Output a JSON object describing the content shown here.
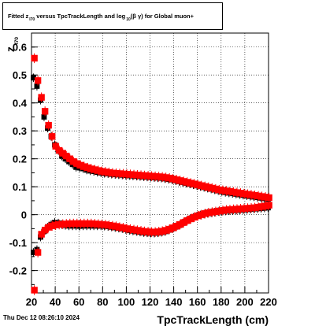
{
  "title_parts": {
    "p1": "Fitted  z",
    "sub1": "I70",
    "p2": "  versus TpcTrackLength and log",
    "sub2": "10",
    "p3": "(β γ) for Global muon+"
  },
  "timestamp": "Thu Dec 12 08:26:10 2024",
  "chart_data": {
    "type": "scatter",
    "xlabel": "TpcTrackLength (cm)",
    "ylabel": "z",
    "ylabel_sub": "I70",
    "xlim": [
      20,
      220
    ],
    "ylim": [
      -0.28,
      0.65
    ],
    "xticks": [
      20,
      40,
      60,
      80,
      100,
      120,
      140,
      160,
      180,
      200,
      220
    ],
    "yticks": [
      -0.2,
      -0.1,
      0,
      0.1,
      0.2,
      0.3,
      0.4,
      0.5,
      0.6
    ],
    "grid": true,
    "colors": {
      "black": "#000000",
      "red": "#ff0000"
    },
    "series": [
      {
        "color": "black",
        "points": [
          [
            22,
            0.49
          ],
          [
            25,
            0.46
          ],
          [
            28,
            0.41
          ],
          [
            31,
            0.35
          ],
          [
            34,
            0.31
          ],
          [
            37,
            0.28
          ],
          [
            40,
            0.25
          ],
          [
            43,
            0.23
          ],
          [
            46,
            0.21
          ],
          [
            49,
            0.2
          ],
          [
            52,
            0.19
          ],
          [
            55,
            0.18
          ],
          [
            58,
            0.17
          ],
          [
            61,
            0.168
          ],
          [
            64,
            0.165
          ],
          [
            67,
            0.16
          ],
          [
            70,
            0.157
          ],
          [
            73,
            0.155
          ],
          [
            76,
            0.152
          ],
          [
            79,
            0.15
          ],
          [
            82,
            0.148
          ],
          [
            85,
            0.147
          ],
          [
            88,
            0.145
          ],
          [
            91,
            0.144
          ],
          [
            94,
            0.143
          ],
          [
            97,
            0.142
          ],
          [
            100,
            0.141
          ],
          [
            103,
            0.14
          ],
          [
            106,
            0.139
          ],
          [
            109,
            0.138
          ],
          [
            112,
            0.137
          ],
          [
            115,
            0.136
          ],
          [
            118,
            0.135
          ],
          [
            121,
            0.134
          ],
          [
            124,
            0.133
          ],
          [
            127,
            0.132
          ],
          [
            130,
            0.131
          ],
          [
            133,
            0.129
          ],
          [
            136,
            0.127
          ],
          [
            139,
            0.125
          ],
          [
            142,
            0.122
          ],
          [
            145,
            0.119
          ],
          [
            148,
            0.116
          ],
          [
            151,
            0.113
          ],
          [
            154,
            0.11
          ],
          [
            157,
            0.107
          ],
          [
            160,
            0.104
          ],
          [
            163,
            0.101
          ],
          [
            166,
            0.098
          ],
          [
            169,
            0.095
          ],
          [
            172,
            0.092
          ],
          [
            175,
            0.089
          ],
          [
            178,
            0.086
          ],
          [
            181,
            0.083
          ],
          [
            184,
            0.08
          ],
          [
            187,
            0.078
          ],
          [
            190,
            0.076
          ],
          [
            193,
            0.074
          ],
          [
            196,
            0.072
          ],
          [
            199,
            0.07
          ],
          [
            202,
            0.068
          ],
          [
            205,
            0.066
          ],
          [
            208,
            0.064
          ],
          [
            211,
            0.062
          ],
          [
            214,
            0.06
          ],
          [
            217,
            0.058
          ],
          [
            220,
            0.056
          ],
          [
            22,
            -0.135
          ],
          [
            25,
            -0.125
          ],
          [
            28,
            -0.08
          ],
          [
            31,
            -0.06
          ],
          [
            34,
            -0.045
          ],
          [
            37,
            -0.035
          ],
          [
            40,
            -0.028
          ],
          [
            43,
            -0.03
          ],
          [
            46,
            -0.035
          ],
          [
            49,
            -0.038
          ],
          [
            52,
            -0.04
          ],
          [
            55,
            -0.04
          ],
          [
            58,
            -0.04
          ],
          [
            61,
            -0.041
          ],
          [
            64,
            -0.04
          ],
          [
            67,
            -0.04
          ],
          [
            70,
            -0.04
          ],
          [
            73,
            -0.04
          ],
          [
            76,
            -0.04
          ],
          [
            79,
            -0.04
          ],
          [
            82,
            -0.041
          ],
          [
            85,
            -0.042
          ],
          [
            88,
            -0.044
          ],
          [
            91,
            -0.046
          ],
          [
            94,
            -0.048
          ],
          [
            97,
            -0.05
          ],
          [
            100,
            -0.053
          ],
          [
            103,
            -0.056
          ],
          [
            106,
            -0.058
          ],
          [
            109,
            -0.06
          ],
          [
            112,
            -0.062
          ],
          [
            115,
            -0.064
          ],
          [
            118,
            -0.065
          ],
          [
            121,
            -0.066
          ],
          [
            124,
            -0.066
          ],
          [
            127,
            -0.065
          ],
          [
            130,
            -0.063
          ],
          [
            133,
            -0.06
          ],
          [
            136,
            -0.055
          ],
          [
            139,
            -0.05
          ],
          [
            142,
            -0.044
          ],
          [
            145,
            -0.038
          ],
          [
            148,
            -0.03
          ],
          [
            151,
            -0.023
          ],
          [
            154,
            -0.016
          ],
          [
            157,
            -0.01
          ],
          [
            160,
            -0.005
          ],
          [
            163,
            -0.001
          ],
          [
            166,
            0.002
          ],
          [
            169,
            0.005
          ],
          [
            172,
            0.007
          ],
          [
            175,
            0.009
          ],
          [
            178,
            0.011
          ],
          [
            181,
            0.012
          ],
          [
            184,
            0.013
          ],
          [
            187,
            0.014
          ],
          [
            190,
            0.015
          ],
          [
            193,
            0.016
          ],
          [
            196,
            0.017
          ],
          [
            199,
            0.018
          ],
          [
            202,
            0.019
          ],
          [
            205,
            0.02
          ],
          [
            208,
            0.021
          ],
          [
            211,
            0.022
          ],
          [
            214,
            0.023
          ],
          [
            217,
            0.024
          ],
          [
            220,
            0.025
          ]
        ]
      },
      {
        "color": "red",
        "points": [
          [
            22,
            0.56
          ],
          [
            25,
            0.48
          ],
          [
            28,
            0.42
          ],
          [
            31,
            0.37
          ],
          [
            34,
            0.32
          ],
          [
            37,
            0.28
          ],
          [
            40,
            0.245
          ],
          [
            43,
            0.23
          ],
          [
            46,
            0.22
          ],
          [
            49,
            0.21
          ],
          [
            52,
            0.2
          ],
          [
            55,
            0.19
          ],
          [
            58,
            0.183
          ],
          [
            61,
            0.177
          ],
          [
            64,
            0.172
          ],
          [
            67,
            0.168
          ],
          [
            70,
            0.164
          ],
          [
            73,
            0.161
          ],
          [
            76,
            0.158
          ],
          [
            79,
            0.155
          ],
          [
            82,
            0.153
          ],
          [
            85,
            0.151
          ],
          [
            88,
            0.149
          ],
          [
            91,
            0.148
          ],
          [
            94,
            0.147
          ],
          [
            97,
            0.146
          ],
          [
            100,
            0.145
          ],
          [
            103,
            0.144
          ],
          [
            106,
            0.143
          ],
          [
            109,
            0.142
          ],
          [
            112,
            0.141
          ],
          [
            115,
            0.14
          ],
          [
            118,
            0.139
          ],
          [
            121,
            0.138
          ],
          [
            124,
            0.137
          ],
          [
            127,
            0.136
          ],
          [
            130,
            0.135
          ],
          [
            133,
            0.133
          ],
          [
            136,
            0.131
          ],
          [
            139,
            0.128
          ],
          [
            142,
            0.125
          ],
          [
            145,
            0.122
          ],
          [
            148,
            0.119
          ],
          [
            151,
            0.116
          ],
          [
            154,
            0.113
          ],
          [
            157,
            0.11
          ],
          [
            160,
            0.107
          ],
          [
            163,
            0.104
          ],
          [
            166,
            0.101
          ],
          [
            169,
            0.098
          ],
          [
            172,
            0.095
          ],
          [
            175,
            0.092
          ],
          [
            178,
            0.089
          ],
          [
            181,
            0.087
          ],
          [
            184,
            0.085
          ],
          [
            187,
            0.083
          ],
          [
            190,
            0.081
          ],
          [
            193,
            0.079
          ],
          [
            196,
            0.077
          ],
          [
            199,
            0.075
          ],
          [
            202,
            0.073
          ],
          [
            205,
            0.071
          ],
          [
            208,
            0.069
          ],
          [
            211,
            0.067
          ],
          [
            214,
            0.065
          ],
          [
            217,
            0.063
          ],
          [
            220,
            0.061
          ],
          [
            22,
            -0.27
          ],
          [
            25,
            -0.135
          ],
          [
            28,
            -0.07
          ],
          [
            31,
            -0.055
          ],
          [
            34,
            -0.045
          ],
          [
            37,
            -0.04
          ],
          [
            40,
            -0.037
          ],
          [
            43,
            -0.035
          ],
          [
            46,
            -0.034
          ],
          [
            49,
            -0.033
          ],
          [
            52,
            -0.032
          ],
          [
            55,
            -0.032
          ],
          [
            58,
            -0.032
          ],
          [
            61,
            -0.032
          ],
          [
            64,
            -0.032
          ],
          [
            67,
            -0.032
          ],
          [
            70,
            -0.032
          ],
          [
            73,
            -0.033
          ],
          [
            76,
            -0.034
          ],
          [
            79,
            -0.035
          ],
          [
            82,
            -0.036
          ],
          [
            85,
            -0.038
          ],
          [
            88,
            -0.04
          ],
          [
            91,
            -0.042
          ],
          [
            94,
            -0.045
          ],
          [
            97,
            -0.047
          ],
          [
            100,
            -0.05
          ],
          [
            103,
            -0.052
          ],
          [
            106,
            -0.054
          ],
          [
            109,
            -0.056
          ],
          [
            112,
            -0.058
          ],
          [
            115,
            -0.06
          ],
          [
            118,
            -0.061
          ],
          [
            121,
            -0.062
          ],
          [
            124,
            -0.062
          ],
          [
            127,
            -0.061
          ],
          [
            130,
            -0.059
          ],
          [
            133,
            -0.056
          ],
          [
            136,
            -0.052
          ],
          [
            139,
            -0.047
          ],
          [
            142,
            -0.041
          ],
          [
            145,
            -0.035
          ],
          [
            148,
            -0.028
          ],
          [
            151,
            -0.021
          ],
          [
            154,
            -0.015
          ],
          [
            157,
            -0.009
          ],
          [
            160,
            -0.004
          ],
          [
            163,
            0
          ],
          [
            166,
            0.004
          ],
          [
            169,
            0.007
          ],
          [
            172,
            0.009
          ],
          [
            175,
            0.011
          ],
          [
            178,
            0.013
          ],
          [
            181,
            0.015
          ],
          [
            184,
            0.017
          ],
          [
            187,
            0.018
          ],
          [
            190,
            0.019
          ],
          [
            193,
            0.02
          ],
          [
            196,
            0.021
          ],
          [
            199,
            0.022
          ],
          [
            202,
            0.023
          ],
          [
            205,
            0.024
          ],
          [
            208,
            0.025
          ],
          [
            211,
            0.027
          ],
          [
            214,
            0.029
          ],
          [
            217,
            0.031
          ],
          [
            220,
            0.034
          ]
        ]
      }
    ]
  }
}
